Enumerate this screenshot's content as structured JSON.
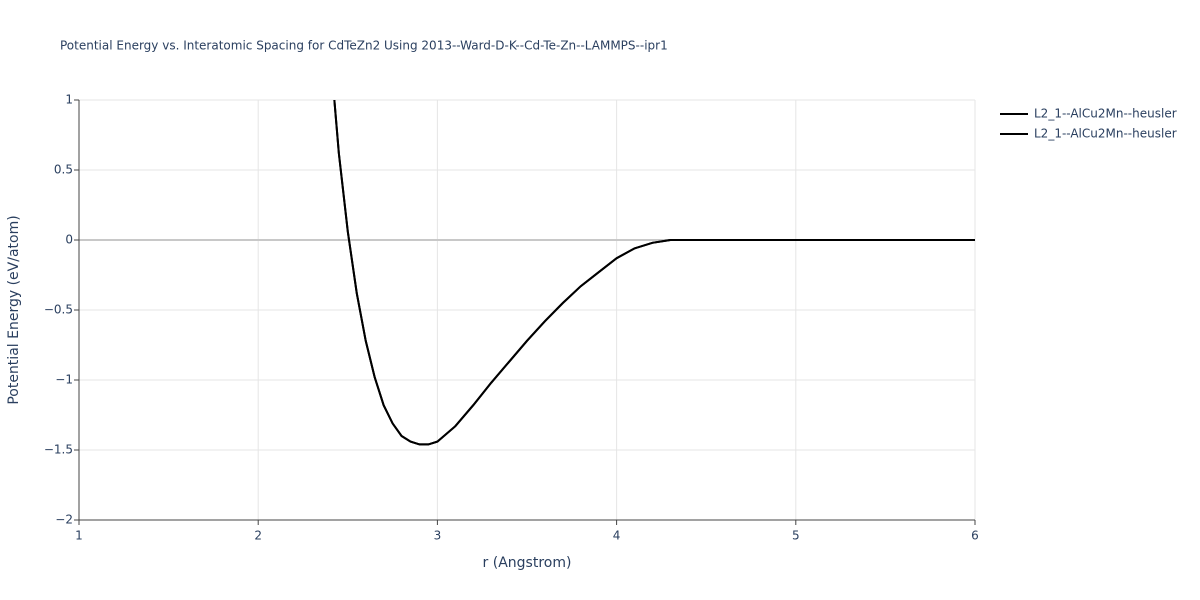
{
  "chart_data": {
    "type": "line",
    "title": "Potential Energy vs. Interatomic Spacing for CdTeZn2 Using 2013--Ward-D-K--Cd-Te-Zn--LAMMPS--ipr1",
    "xlabel": "r (Angstrom)",
    "ylabel": "Potential Energy (eV/atom)",
    "x": [
      2.425,
      2.45,
      2.5,
      2.55,
      2.6,
      2.65,
      2.7,
      2.75,
      2.8,
      2.85,
      2.9,
      2.95,
      3.0,
      3.1,
      3.2,
      3.3,
      3.4,
      3.5,
      3.6,
      3.7,
      3.8,
      3.9,
      4.0,
      4.1,
      4.2,
      4.3,
      4.5,
      5,
      5.5,
      6
    ],
    "series": [
      {
        "name": "L2_1--AlCu2Mn--heusler",
        "color": "#000000",
        "values": [
          1.0,
          0.62,
          0.06,
          -0.38,
          -0.72,
          -0.98,
          -1.18,
          -1.31,
          -1.4,
          -1.44,
          -1.46,
          -1.46,
          -1.44,
          -1.33,
          -1.18,
          -1.02,
          -0.87,
          -0.72,
          -0.58,
          -0.45,
          -0.33,
          -0.23,
          -0.13,
          -0.06,
          -0.02,
          0,
          0,
          0,
          0,
          0
        ]
      },
      {
        "name": "L2_1--AlCu2Mn--heusler",
        "color": "#000000",
        "values": [
          1.0,
          0.62,
          0.06,
          -0.38,
          -0.72,
          -0.98,
          -1.18,
          -1.31,
          -1.4,
          -1.44,
          -1.46,
          -1.46,
          -1.44,
          -1.33,
          -1.18,
          -1.02,
          -0.87,
          -0.72,
          -0.58,
          -0.45,
          -0.33,
          -0.23,
          -0.13,
          -0.06,
          -0.02,
          0,
          0,
          0,
          0,
          0
        ]
      }
    ],
    "xlim": [
      1,
      6
    ],
    "ylim": [
      -2,
      1
    ],
    "xticks": [
      1,
      2,
      3,
      4,
      5,
      6
    ],
    "yticks": [
      {
        "value": -2,
        "label": "−2"
      },
      {
        "value": -1.5,
        "label": "−1.5"
      },
      {
        "value": -1,
        "label": "−1"
      },
      {
        "value": -0.5,
        "label": "−0.5"
      },
      0,
      0.5,
      1
    ],
    "grid": true
  }
}
